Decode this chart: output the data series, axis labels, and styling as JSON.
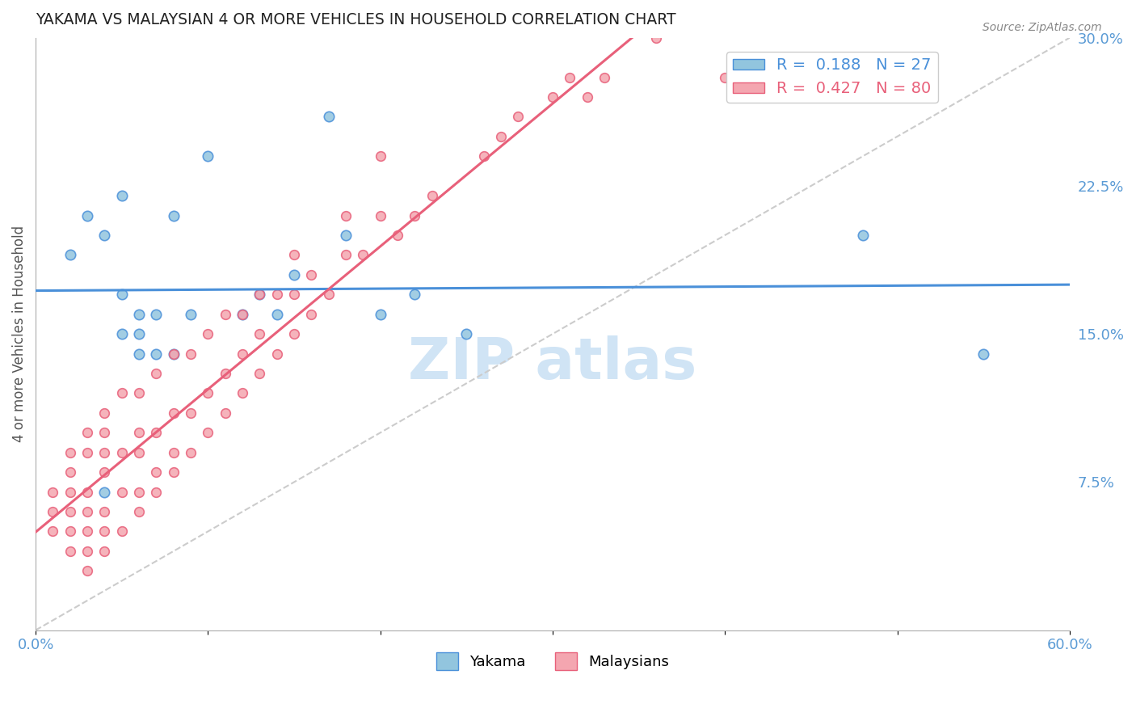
{
  "title": "YAKAMA VS MALAYSIAN 4 OR MORE VEHICLES IN HOUSEHOLD CORRELATION CHART",
  "source_text": "Source: ZipAtlas.com",
  "xlabel": "",
  "ylabel": "4 or more Vehicles in Household",
  "xlim": [
    0.0,
    0.6
  ],
  "ylim": [
    0.0,
    0.3
  ],
  "xticks": [
    0.0,
    0.1,
    0.2,
    0.3,
    0.4,
    0.5,
    0.6
  ],
  "xticklabels": [
    "0.0%",
    "",
    "",
    "",
    "",
    "",
    "60.0%"
  ],
  "yticks_right": [
    0.075,
    0.15,
    0.225,
    0.3
  ],
  "yticks_right_labels": [
    "7.5%",
    "15.0%",
    "22.5%",
    "30.0%"
  ],
  "legend_r1": "R =  0.188   N = 27",
  "legend_r2": "R =  0.427   N = 80",
  "color_yakama": "#92C5DE",
  "color_malaysian": "#F4A6B0",
  "color_yakama_line": "#4A90D9",
  "color_malaysian_line": "#E8607A",
  "color_diag_line": "#CCCCCC",
  "color_title": "#333333",
  "color_axis_labels": "#5B9BD5",
  "background_color": "#FFFFFF",
  "watermark_text": "ZIPatlas",
  "watermark_color": "#D0E4F5",
  "yakama_x": [
    0.02,
    0.03,
    0.04,
    0.04,
    0.05,
    0.05,
    0.05,
    0.06,
    0.06,
    0.06,
    0.07,
    0.07,
    0.08,
    0.08,
    0.09,
    0.1,
    0.12,
    0.13,
    0.14,
    0.15,
    0.17,
    0.18,
    0.2,
    0.22,
    0.25,
    0.48,
    0.55
  ],
  "yakama_y": [
    0.19,
    0.21,
    0.07,
    0.2,
    0.15,
    0.17,
    0.22,
    0.14,
    0.15,
    0.16,
    0.14,
    0.16,
    0.14,
    0.21,
    0.16,
    0.24,
    0.16,
    0.17,
    0.16,
    0.18,
    0.26,
    0.2,
    0.16,
    0.17,
    0.15,
    0.2,
    0.14
  ],
  "malaysian_x": [
    0.01,
    0.01,
    0.01,
    0.02,
    0.02,
    0.02,
    0.02,
    0.02,
    0.02,
    0.03,
    0.03,
    0.03,
    0.03,
    0.03,
    0.03,
    0.03,
    0.04,
    0.04,
    0.04,
    0.04,
    0.04,
    0.04,
    0.04,
    0.05,
    0.05,
    0.05,
    0.05,
    0.06,
    0.06,
    0.06,
    0.06,
    0.06,
    0.07,
    0.07,
    0.07,
    0.07,
    0.08,
    0.08,
    0.08,
    0.08,
    0.09,
    0.09,
    0.09,
    0.1,
    0.1,
    0.1,
    0.11,
    0.11,
    0.11,
    0.12,
    0.12,
    0.12,
    0.13,
    0.13,
    0.13,
    0.14,
    0.14,
    0.15,
    0.15,
    0.15,
    0.16,
    0.16,
    0.17,
    0.18,
    0.18,
    0.19,
    0.2,
    0.2,
    0.21,
    0.22,
    0.23,
    0.26,
    0.27,
    0.28,
    0.3,
    0.31,
    0.32,
    0.33,
    0.36,
    0.4
  ],
  "malaysian_y": [
    0.05,
    0.06,
    0.07,
    0.04,
    0.05,
    0.06,
    0.07,
    0.08,
    0.09,
    0.03,
    0.04,
    0.05,
    0.06,
    0.07,
    0.09,
    0.1,
    0.04,
    0.05,
    0.06,
    0.08,
    0.09,
    0.1,
    0.11,
    0.05,
    0.07,
    0.09,
    0.12,
    0.06,
    0.07,
    0.09,
    0.1,
    0.12,
    0.07,
    0.08,
    0.1,
    0.13,
    0.08,
    0.09,
    0.11,
    0.14,
    0.09,
    0.11,
    0.14,
    0.1,
    0.12,
    0.15,
    0.11,
    0.13,
    0.16,
    0.12,
    0.14,
    0.16,
    0.13,
    0.15,
    0.17,
    0.14,
    0.17,
    0.15,
    0.17,
    0.19,
    0.16,
    0.18,
    0.17,
    0.19,
    0.21,
    0.19,
    0.21,
    0.24,
    0.2,
    0.21,
    0.22,
    0.24,
    0.25,
    0.26,
    0.27,
    0.28,
    0.27,
    0.28,
    0.3,
    0.28
  ]
}
